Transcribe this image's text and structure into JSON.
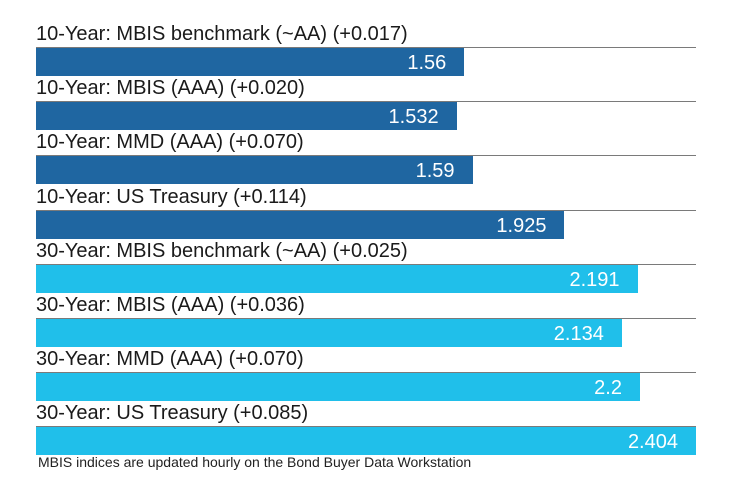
{
  "chart_data": {
    "type": "bar",
    "orientation": "horizontal",
    "categories": [
      "10-Year: MBIS benchmark (~AA) (+0.017)",
      "10-Year: MBIS (AAA) (+0.020)",
      "10-Year: MMD (AAA) (+0.070)",
      "10-Year: US Treasury (+0.114)",
      "30-Year: MBIS benchmark (~AA) (+0.025)",
      "30-Year: MBIS (AAA) (+0.036)",
      "30-Year: MMD (AAA) (+0.070)",
      "30-Year: US Treasury (+0.085)"
    ],
    "values": [
      1.56,
      1.532,
      1.59,
      1.925,
      2.191,
      2.134,
      2.2,
      2.404
    ],
    "value_labels": [
      "1.56",
      "1.532",
      "1.59",
      "1.925",
      "2.191",
      "2.134",
      "2.2",
      "2.404"
    ],
    "colors": [
      "#1f66a1",
      "#1f66a1",
      "#1f66a1",
      "#1f66a1",
      "#20bfea",
      "#20bfea",
      "#20bfea",
      "#20bfea"
    ],
    "xlim": [
      0,
      2.404
    ],
    "grid": false,
    "legend": "none"
  },
  "footnote": "MBIS indices are updated hourly on the Bond Buyer Data Workstation"
}
